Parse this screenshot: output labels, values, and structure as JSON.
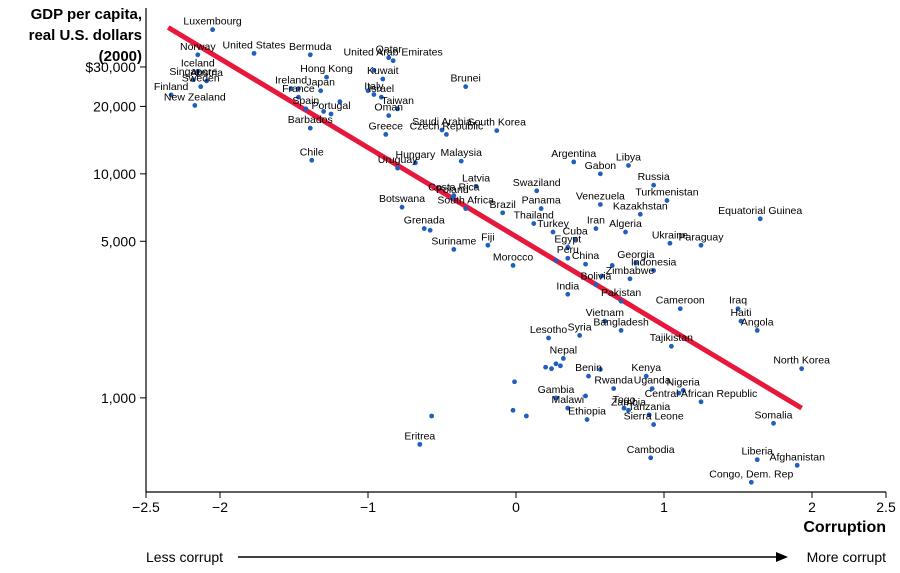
{
  "chart_data": {
    "type": "scatter",
    "ylabel_lines": [
      "GDP per capita,",
      "real U.S. dollars",
      "(2000)"
    ],
    "xlabel": "Corruption",
    "less_label": "Less corrupt",
    "more_label": "More corrupt",
    "xlim": [
      -2.5,
      2.5
    ],
    "ylim": [
      380,
      55000
    ],
    "y_scale": "log",
    "x_ticks": [
      {
        "value": -2.5,
        "label": "−2.5"
      },
      {
        "value": -2,
        "label": "−2"
      },
      {
        "value": -1,
        "label": "−1"
      },
      {
        "value": 0,
        "label": "0"
      },
      {
        "value": 1,
        "label": "1"
      },
      {
        "value": 2,
        "label": "2"
      },
      {
        "value": 2.5,
        "label": "2.5"
      }
    ],
    "y_ticks": [
      {
        "value": 30000,
        "label": "$30,000"
      },
      {
        "value": 20000,
        "label": "20,000"
      },
      {
        "value": 10000,
        "label": "10,000"
      },
      {
        "value": 5000,
        "label": "5,000"
      },
      {
        "value": 1000,
        "label": "1,000"
      }
    ],
    "trend_line": {
      "x": [
        -2.35,
        1.93
      ],
      "y": [
        45000,
        900
      ],
      "color": "#e8173c"
    },
    "point_color": "#1f5fbf",
    "labeled_points": [
      {
        "name": "Luxembourg",
        "x": -2.05,
        "y": 44000
      },
      {
        "name": "United States",
        "x": -1.77,
        "y": 34500
      },
      {
        "name": "Bermuda",
        "x": -1.39,
        "y": 34000
      },
      {
        "name": "Norway",
        "x": -2.15,
        "y": 34000
      },
      {
        "name": "Iceland",
        "x": -2.15,
        "y": 28700
      },
      {
        "name": "Austria",
        "x": -2.09,
        "y": 26000
      },
      {
        "name": "Singapore",
        "x": -2.18,
        "y": 26300
      },
      {
        "name": "Sweden",
        "x": -2.13,
        "y": 24500
      },
      {
        "name": "Finland",
        "x": -2.33,
        "y": 22500
      },
      {
        "name": "New Zealand",
        "x": -2.17,
        "y": 20200
      },
      {
        "name": "Ireland",
        "x": -1.52,
        "y": 24000
      },
      {
        "name": "Hong Kong",
        "x": -1.28,
        "y": 27000
      },
      {
        "name": "Japan",
        "x": -1.32,
        "y": 23500
      },
      {
        "name": "France",
        "x": -1.47,
        "y": 22000
      },
      {
        "name": "Spain",
        "x": -1.42,
        "y": 19500
      },
      {
        "name": "Portugal",
        "x": -1.25,
        "y": 18500
      },
      {
        "name": "Barbados",
        "x": -1.39,
        "y": 16000
      },
      {
        "name": "Qatar",
        "x": -0.86,
        "y": 33000
      },
      {
        "name": "United Arab Emirates",
        "x": -0.83,
        "y": 32000
      },
      {
        "name": "Kuwait",
        "x": -0.9,
        "y": 26500
      },
      {
        "name": "Italy",
        "x": -0.96,
        "y": 22600
      },
      {
        "name": "Israel",
        "x": -0.91,
        "y": 22000
      },
      {
        "name": "Brunei",
        "x": -0.34,
        "y": 24500
      },
      {
        "name": "Taiwan",
        "x": -0.8,
        "y": 19500
      },
      {
        "name": "Oman",
        "x": -0.86,
        "y": 18200
      },
      {
        "name": "Saudi Arabia",
        "x": -0.5,
        "y": 15700
      },
      {
        "name": "Greece",
        "x": -0.88,
        "y": 15000
      },
      {
        "name": "Czech Republic",
        "x": -0.47,
        "y": 15000
      },
      {
        "name": "South Korea",
        "x": -0.13,
        "y": 15600
      },
      {
        "name": "Chile",
        "x": -1.38,
        "y": 11500
      },
      {
        "name": "Hungary",
        "x": -0.68,
        "y": 11200
      },
      {
        "name": "Malaysia",
        "x": -0.37,
        "y": 11400
      },
      {
        "name": "Uruguay",
        "x": -0.8,
        "y": 10600
      },
      {
        "name": "Argentina",
        "x": 0.39,
        "y": 11300
      },
      {
        "name": "Gabon",
        "x": 0.57,
        "y": 10000
      },
      {
        "name": "Libya",
        "x": 0.76,
        "y": 10900
      },
      {
        "name": "Russia",
        "x": 0.93,
        "y": 8900
      },
      {
        "name": "Turkmenistan",
        "x": 1.02,
        "y": 7600
      },
      {
        "name": "Latvia",
        "x": -0.27,
        "y": 8800
      },
      {
        "name": "Swaziland",
        "x": 0.14,
        "y": 8400
      },
      {
        "name": "Costa Rica",
        "x": -0.42,
        "y": 8000
      },
      {
        "name": "Poland",
        "x": -0.43,
        "y": 7800
      },
      {
        "name": "Panama",
        "x": 0.17,
        "y": 7000
      },
      {
        "name": "Venezuela",
        "x": 0.57,
        "y": 7300
      },
      {
        "name": "Kazakhstan",
        "x": 0.84,
        "y": 6600
      },
      {
        "name": "Equatorial Guinea",
        "x": 1.65,
        "y": 6300
      },
      {
        "name": "Botswana",
        "x": -0.77,
        "y": 7100
      },
      {
        "name": "South Africa",
        "x": -0.34,
        "y": 7000
      },
      {
        "name": "Brazil",
        "x": -0.09,
        "y": 6700
      },
      {
        "name": "Thailand",
        "x": 0.12,
        "y": 6000
      },
      {
        "name": "Iran",
        "x": 0.54,
        "y": 5700
      },
      {
        "name": "Algeria",
        "x": 0.74,
        "y": 5500
      },
      {
        "name": "Turkey",
        "x": 0.25,
        "y": 5500
      },
      {
        "name": "Grenada",
        "x": -0.62,
        "y": 5700
      },
      {
        "name": "Ukraine",
        "x": 1.04,
        "y": 4900
      },
      {
        "name": "Paraguay",
        "x": 1.25,
        "y": 4800
      },
      {
        "name": "Cuba",
        "x": 0.4,
        "y": 5100
      },
      {
        "name": "Fiji",
        "x": -0.19,
        "y": 4800
      },
      {
        "name": "Egypt",
        "x": 0.35,
        "y": 4700
      },
      {
        "name": "Suriname",
        "x": -0.42,
        "y": 4600
      },
      {
        "name": "Peru",
        "x": 0.35,
        "y": 4200
      },
      {
        "name": "Morocco",
        "x": -0.02,
        "y": 3900
      },
      {
        "name": "China",
        "x": 0.47,
        "y": 3950
      },
      {
        "name": "Georgia",
        "x": 0.81,
        "y": 4000
      },
      {
        "name": "Indonesia",
        "x": 0.93,
        "y": 3700
      },
      {
        "name": "Zimbabwe",
        "x": 0.77,
        "y": 3400
      },
      {
        "name": "Bolivia",
        "x": 0.54,
        "y": 3200
      },
      {
        "name": "India",
        "x": 0.35,
        "y": 2900
      },
      {
        "name": "Pakistan",
        "x": 0.71,
        "y": 2700
      },
      {
        "name": "Cameroon",
        "x": 1.11,
        "y": 2500
      },
      {
        "name": "Iraq",
        "x": 1.5,
        "y": 2500
      },
      {
        "name": "Haiti",
        "x": 1.52,
        "y": 2200
      },
      {
        "name": "Angola",
        "x": 1.63,
        "y": 2000
      },
      {
        "name": "Vietnam",
        "x": 0.6,
        "y": 2200
      },
      {
        "name": "Bangladesh",
        "x": 0.71,
        "y": 2000
      },
      {
        "name": "Syria",
        "x": 0.43,
        "y": 1900
      },
      {
        "name": "Tajikistan",
        "x": 1.05,
        "y": 1700
      },
      {
        "name": "Lesotho",
        "x": 0.22,
        "y": 1850
      },
      {
        "name": "Nepal",
        "x": 0.32,
        "y": 1500
      },
      {
        "name": "North Korea",
        "x": 1.93,
        "y": 1350
      },
      {
        "name": "Benin",
        "x": 0.49,
        "y": 1250
      },
      {
        "name": "Kenya",
        "x": 0.88,
        "y": 1250
      },
      {
        "name": "Rwanda",
        "x": 0.66,
        "y": 1100
      },
      {
        "name": "Uganda",
        "x": 0.92,
        "y": 1100
      },
      {
        "name": "Nigeria",
        "x": 1.13,
        "y": 1080
      },
      {
        "name": "Gambia",
        "x": 0.27,
        "y": 1000
      },
      {
        "name": "Central African Republic",
        "x": 1.25,
        "y": 960
      },
      {
        "name": "Malawi",
        "x": 0.35,
        "y": 900
      },
      {
        "name": "Togo",
        "x": 0.73,
        "y": 900
      },
      {
        "name": "Zambia",
        "x": 0.76,
        "y": 880
      },
      {
        "name": "Tanzania",
        "x": 0.9,
        "y": 840
      },
      {
        "name": "Ethiopia",
        "x": 0.48,
        "y": 800
      },
      {
        "name": "Sierra Leone",
        "x": 0.93,
        "y": 760
      },
      {
        "name": "Somalia",
        "x": 1.74,
        "y": 770
      },
      {
        "name": "Eritrea",
        "x": -0.65,
        "y": 620
      },
      {
        "name": "Cambodia",
        "x": 0.91,
        "y": 540
      },
      {
        "name": "Liberia",
        "x": 1.63,
        "y": 530
      },
      {
        "name": "Afghanistan",
        "x": 1.9,
        "y": 500
      },
      {
        "name": "Congo, Dem. Rep",
        "x": 1.59,
        "y": 420
      }
    ],
    "unlabeled_points": [
      {
        "x": -0.01,
        "y": 1180
      },
      {
        "x": -0.02,
        "y": 880
      },
      {
        "x": 0.07,
        "y": 830
      },
      {
        "x": -0.57,
        "y": 830
      },
      {
        "x": 0.2,
        "y": 1370
      },
      {
        "x": 0.24,
        "y": 1350
      },
      {
        "x": 0.27,
        "y": 1420
      },
      {
        "x": 0.3,
        "y": 1390
      },
      {
        "x": 0.57,
        "y": 1340
      },
      {
        "x": 0.47,
        "y": 1020
      },
      {
        "x": 1.1,
        "y": 1050
      },
      {
        "x": -1.19,
        "y": 21000
      },
      {
        "x": -1.0,
        "y": 23500
      },
      {
        "x": -0.96,
        "y": 29000
      },
      {
        "x": -1.3,
        "y": 19000
      },
      {
        "x": -1.47,
        "y": 24000
      },
      {
        "x": 0.27,
        "y": 4100
      },
      {
        "x": 0.65,
        "y": 3900
      },
      {
        "x": 0.58,
        "y": 3500
      },
      {
        "x": -0.58,
        "y": 5600
      }
    ]
  }
}
